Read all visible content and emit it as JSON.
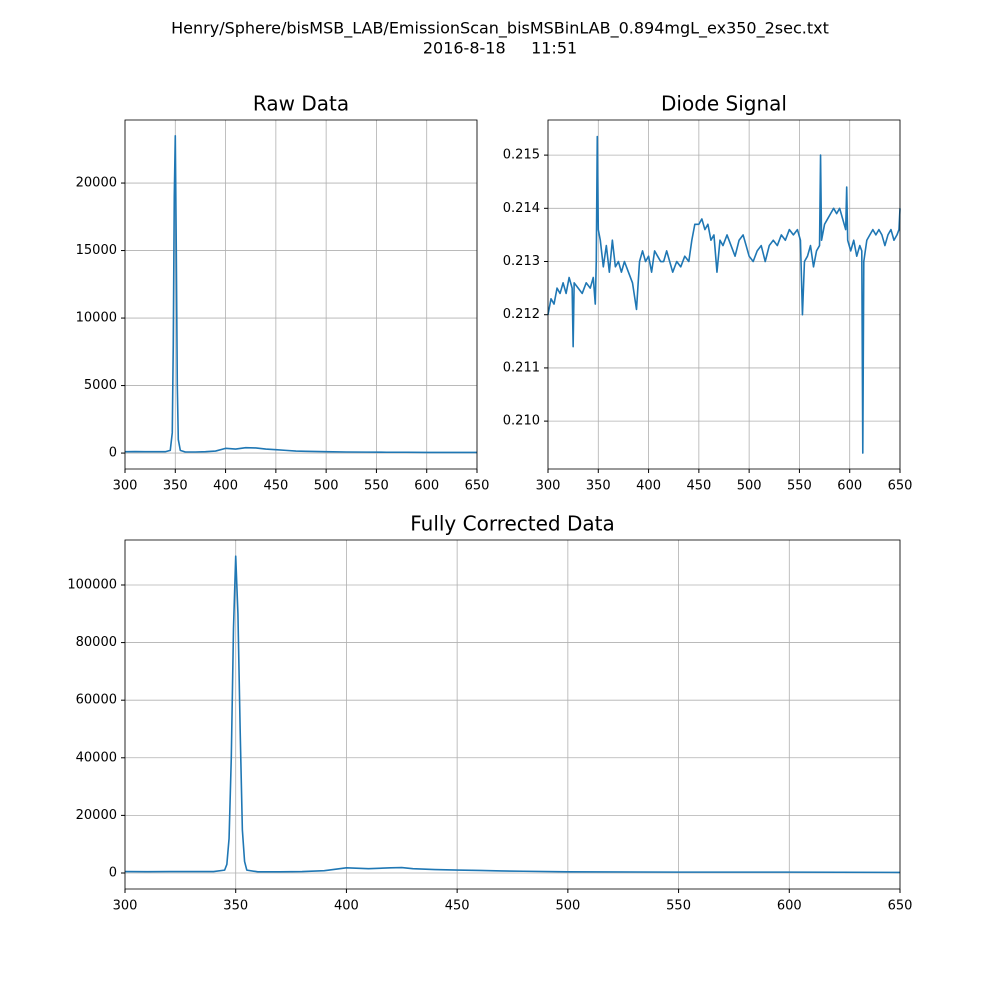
{
  "title": "Henry/Sphere/bisMSB_LAB/EmissionScan_bisMSBinLAB_0.894mgL_ex350_2sec.txt",
  "subtitle": "2016-8-18     11:51",
  "chart_data": [
    {
      "type": "line",
      "title": "Raw Data",
      "color": "#1f77b4",
      "grid": true,
      "x": [
        300,
        310,
        320,
        330,
        340,
        345,
        347,
        348,
        349,
        350,
        351,
        352,
        353,
        355,
        360,
        370,
        380,
        390,
        400,
        410,
        420,
        430,
        440,
        450,
        460,
        470,
        480,
        500,
        520,
        540,
        560,
        580,
        600,
        620,
        640,
        650
      ],
      "values": [
        100,
        110,
        100,
        105,
        100,
        200,
        1500,
        8000,
        19000,
        23500,
        15000,
        5000,
        1000,
        200,
        80,
        80,
        100,
        150,
        350,
        300,
        400,
        380,
        300,
        250,
        200,
        150,
        130,
        100,
        80,
        70,
        60,
        60,
        50,
        50,
        50,
        50
      ],
      "xlim": [
        300,
        650
      ],
      "xticks": [
        300,
        350,
        400,
        450,
        500,
        550,
        600,
        650
      ],
      "ylim": [
        -1180,
        24670
      ],
      "yticks": [
        0,
        5000,
        10000,
        15000,
        20000
      ]
    },
    {
      "type": "line",
      "title": "Diode Signal",
      "color": "#1f77b4",
      "grid": true,
      "x": [
        300,
        303,
        306,
        309,
        312,
        315,
        318,
        321,
        324,
        325,
        326,
        330,
        334,
        338,
        342,
        345,
        347,
        348,
        349,
        350,
        352,
        355,
        358,
        361,
        364,
        367,
        370,
        373,
        376,
        380,
        384,
        388,
        391,
        394,
        397,
        400,
        403,
        406,
        409,
        412,
        415,
        418,
        421,
        424,
        428,
        432,
        436,
        440,
        443,
        446,
        450,
        453,
        456,
        459,
        462,
        465,
        468,
        471,
        474,
        478,
        482,
        486,
        490,
        494,
        497,
        500,
        504,
        508,
        512,
        516,
        520,
        524,
        528,
        532,
        536,
        540,
        544,
        548,
        551,
        553,
        555,
        558,
        561,
        564,
        567,
        570,
        571,
        572,
        575,
        578,
        581,
        584,
        587,
        590,
        593,
        596,
        597,
        598,
        601,
        604,
        607,
        610,
        612,
        613,
        614,
        617,
        620,
        623,
        626,
        629,
        632,
        635,
        638,
        641,
        644,
        647,
        649,
        650
      ],
      "values": [
        0.212,
        0.2123,
        0.2122,
        0.2125,
        0.2124,
        0.2126,
        0.2124,
        0.2127,
        0.2125,
        0.2114,
        0.2126,
        0.2125,
        0.2124,
        0.2126,
        0.2125,
        0.2127,
        0.2122,
        0.213,
        0.21535,
        0.2136,
        0.2134,
        0.2129,
        0.2133,
        0.2128,
        0.2134,
        0.2129,
        0.213,
        0.2128,
        0.213,
        0.2128,
        0.2126,
        0.2121,
        0.213,
        0.2132,
        0.213,
        0.2131,
        0.2128,
        0.2132,
        0.2131,
        0.213,
        0.213,
        0.2132,
        0.213,
        0.2128,
        0.213,
        0.2129,
        0.2131,
        0.213,
        0.2134,
        0.2137,
        0.2137,
        0.2138,
        0.2136,
        0.2137,
        0.2134,
        0.2135,
        0.2128,
        0.2134,
        0.2133,
        0.2135,
        0.2133,
        0.2131,
        0.2134,
        0.2135,
        0.2133,
        0.2131,
        0.213,
        0.2132,
        0.2133,
        0.213,
        0.2133,
        0.2134,
        0.2133,
        0.2135,
        0.2134,
        0.2136,
        0.2135,
        0.2136,
        0.2134,
        0.212,
        0.213,
        0.2131,
        0.2133,
        0.2129,
        0.2132,
        0.2133,
        0.215,
        0.2134,
        0.2137,
        0.2138,
        0.2139,
        0.214,
        0.2139,
        0.214,
        0.2138,
        0.2136,
        0.2144,
        0.2134,
        0.2132,
        0.2134,
        0.2131,
        0.2133,
        0.2132,
        0.2094,
        0.213,
        0.2134,
        0.2135,
        0.2136,
        0.2135,
        0.2136,
        0.2135,
        0.2133,
        0.2135,
        0.2136,
        0.2134,
        0.2135,
        0.2136,
        0.214
      ],
      "xlim": [
        300,
        650
      ],
      "xticks": [
        300,
        350,
        400,
        450,
        500,
        550,
        600,
        650
      ],
      "ylim": [
        0.2091,
        0.21566
      ],
      "yticks": [
        {
          "value": 0.21,
          "label": "0.210"
        },
        0.211,
        0.212,
        0.213,
        0.214,
        0.215
      ]
    },
    {
      "type": "line",
      "title": "Fully Corrected Data",
      "color": "#1f77b4",
      "grid": true,
      "x": [
        300,
        310,
        320,
        330,
        340,
        345,
        346,
        347,
        348,
        349,
        350,
        351,
        352,
        353,
        354,
        355,
        360,
        370,
        380,
        390,
        400,
        410,
        420,
        425,
        430,
        440,
        450,
        460,
        470,
        480,
        500,
        550,
        600,
        650
      ],
      "values": [
        500,
        450,
        500,
        480,
        500,
        1000,
        3000,
        12000,
        40000,
        85000,
        110000,
        90000,
        50000,
        15000,
        4000,
        1000,
        400,
        400,
        500,
        800,
        1800,
        1500,
        1800,
        1900,
        1500,
        1200,
        1000,
        900,
        700,
        600,
        400,
        300,
        300,
        200
      ],
      "xlim": [
        300,
        650
      ],
      "xticks": [
        300,
        350,
        400,
        450,
        500,
        550,
        600,
        650
      ],
      "ylim": [
        -5560,
        115620
      ],
      "yticks": [
        0,
        20000,
        40000,
        60000,
        80000,
        100000
      ]
    }
  ]
}
